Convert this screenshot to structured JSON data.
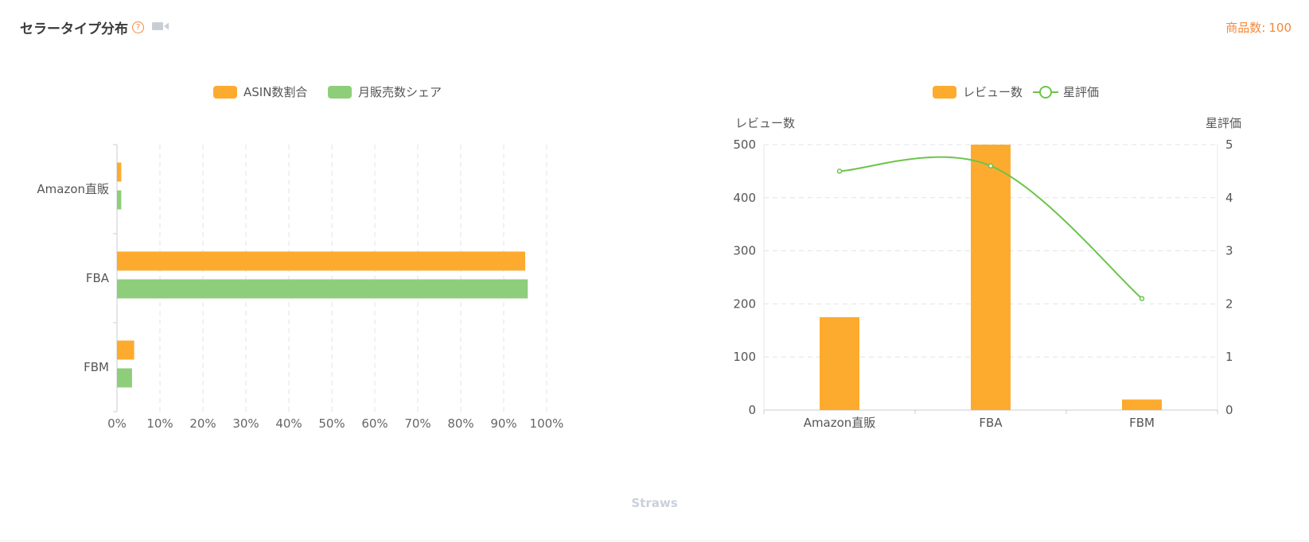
{
  "header": {
    "title": "セラータイプ分布",
    "help_symbol": "?",
    "help_icon": "question-circle-icon",
    "video_icon": "video-camera-icon",
    "count_label": "商品数:",
    "count_value": "100"
  },
  "colors": {
    "orange": "#FDAB2F",
    "green": "#8ECE7A",
    "line": "#6BC44A",
    "accent": "#F5883A"
  },
  "chart_data": [
    {
      "type": "bar",
      "orientation": "horizontal",
      "categories": [
        "Amazon直販",
        "FBA",
        "FBM"
      ],
      "series": [
        {
          "name": "ASIN数割合",
          "values": [
            1,
            95,
            4
          ]
        },
        {
          "name": "月販売数シェア",
          "values": [
            1,
            95.6,
            3.5
          ]
        }
      ],
      "xlim": [
        0,
        100
      ],
      "xticks": [
        "0%",
        "10%",
        "20%",
        "30%",
        "40%",
        "50%",
        "60%",
        "70%",
        "80%",
        "90%",
        "100%"
      ],
      "grid": true,
      "legend": "top-center"
    },
    {
      "type": "bar",
      "categories": [
        "Amazon直販",
        "FBA",
        "FBM"
      ],
      "series": [
        {
          "name": "レビュー数",
          "type": "bar",
          "axis": "left",
          "values": [
            175,
            500,
            20
          ]
        },
        {
          "name": "星評価",
          "type": "line",
          "axis": "right",
          "values": [
            4.5,
            4.6,
            2.1
          ]
        }
      ],
      "ylabel": "レビュー数",
      "ylabel_right": "星評価",
      "ylim": [
        0,
        500
      ],
      "ylim_right": [
        0,
        5
      ],
      "yticks": [
        "0",
        "100",
        "200",
        "300",
        "400",
        "500"
      ],
      "yticks_right": [
        "0",
        "1",
        "2",
        "3",
        "4",
        "5"
      ],
      "grid": true,
      "legend": "top-center"
    }
  ],
  "watermark": "Straws"
}
